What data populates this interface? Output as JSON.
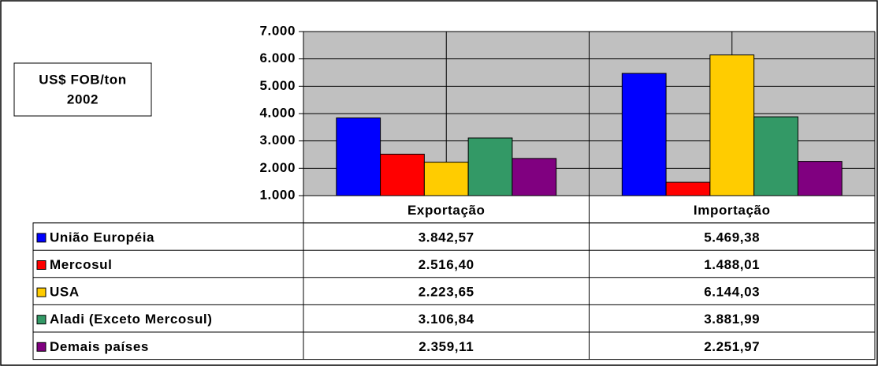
{
  "chart_data": {
    "type": "bar",
    "annotation": [
      "US$ FOB/ton",
      "2002"
    ],
    "categories": [
      "Exportação",
      "Importação"
    ],
    "series": [
      {
        "name": "União Européia",
        "color": "#0000ff",
        "values": [
          3842.57,
          5469.38
        ],
        "value_labels": [
          "3.842,57",
          "5.469,38"
        ]
      },
      {
        "name": "Mercosul",
        "color": "#ff0000",
        "values": [
          2516.4,
          1488.01
        ],
        "value_labels": [
          "2.516,40",
          "1.488,01"
        ]
      },
      {
        "name": "USA",
        "color": "#ffcc00",
        "values": [
          2223.65,
          6144.03
        ],
        "value_labels": [
          "2.223,65",
          "6.144,03"
        ]
      },
      {
        "name": "Aladi (Exceto Mercosul)",
        "color": "#339966",
        "values": [
          3106.84,
          3881.99
        ],
        "value_labels": [
          "3.106,84",
          "3.881,99"
        ]
      },
      {
        "name": "Demais países",
        "color": "#800080",
        "values": [
          2359.11,
          2251.97
        ],
        "value_labels": [
          "2.359,11",
          "2.251,97"
        ]
      }
    ],
    "ylim": [
      1000,
      7000
    ],
    "yticks": [
      {
        "value": 1000,
        "label": "1.000"
      },
      {
        "value": 2000,
        "label": "2.000"
      },
      {
        "value": 3000,
        "label": "3.000"
      },
      {
        "value": 4000,
        "label": "4.000"
      },
      {
        "value": 5000,
        "label": "5.000"
      },
      {
        "value": 6000,
        "label": "6.000"
      },
      {
        "value": 7000,
        "label": "7.000"
      }
    ],
    "grid": true,
    "plot_background": "#c0c0c0"
  }
}
